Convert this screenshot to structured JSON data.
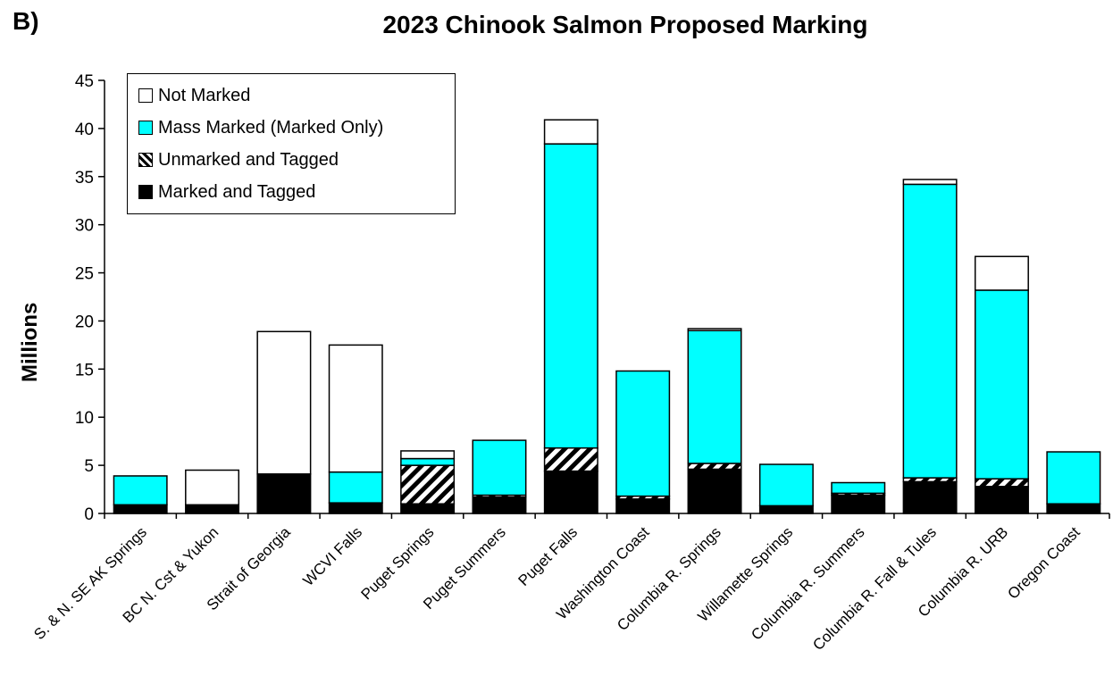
{
  "panel_label": "B)",
  "chart_data": {
    "type": "bar",
    "stacked": true,
    "title": "2023 Chinook Salmon Proposed Marking",
    "xlabel": "",
    "ylabel": "Millions",
    "ylim": [
      0,
      45
    ],
    "yticks": [
      "0",
      "5",
      "10",
      "15",
      "20",
      "25",
      "30",
      "35",
      "40",
      "45"
    ],
    "grid": false,
    "legend_placement": "top-left",
    "categories": [
      "S. & N. SE AK Springs",
      "BC N. Cst & Yukon",
      "Strait of Georgia",
      "WCVI Falls",
      "Puget Springs",
      "Puget Summers",
      "Puget Falls",
      "Washington Coast",
      "Columbia R. Springs",
      "Willamette Springs",
      "Columbia R. Summers",
      "Columbia R. Fall & Tules",
      "Columbia R. URB",
      "Oregon Coast"
    ],
    "legend_order": [
      "Not Marked",
      "Mass Marked (Marked Only)",
      "Unmarked and Tagged",
      "Marked and Tagged"
    ],
    "series": [
      {
        "name": "Marked and Tagged",
        "color": "#000000",
        "pattern": "solid",
        "values": [
          0.9,
          0.9,
          4.1,
          1.1,
          1.0,
          1.7,
          4.4,
          1.5,
          4.6,
          0.8,
          1.9,
          3.3,
          2.8,
          1.0
        ]
      },
      {
        "name": "Unmarked and Tagged",
        "color": "#000000",
        "pattern": "hatch",
        "values": [
          0.0,
          0.0,
          0.0,
          0.0,
          4.0,
          0.2,
          2.4,
          0.3,
          0.6,
          0.0,
          0.2,
          0.4,
          0.8,
          0.0
        ]
      },
      {
        "name": "Mass Marked (Marked Only)",
        "color": "#00ffff",
        "pattern": "solid",
        "values": [
          3.0,
          0.0,
          0.0,
          3.2,
          0.7,
          5.7,
          31.6,
          13.0,
          13.8,
          4.3,
          1.1,
          30.5,
          19.6,
          5.4
        ]
      },
      {
        "name": "Not Marked",
        "color": "#ffffff",
        "pattern": "solid",
        "values": [
          0.0,
          3.6,
          14.8,
          13.2,
          0.8,
          0.0,
          2.5,
          0.0,
          0.2,
          0.0,
          0.0,
          0.5,
          3.5,
          0.0
        ]
      }
    ]
  }
}
